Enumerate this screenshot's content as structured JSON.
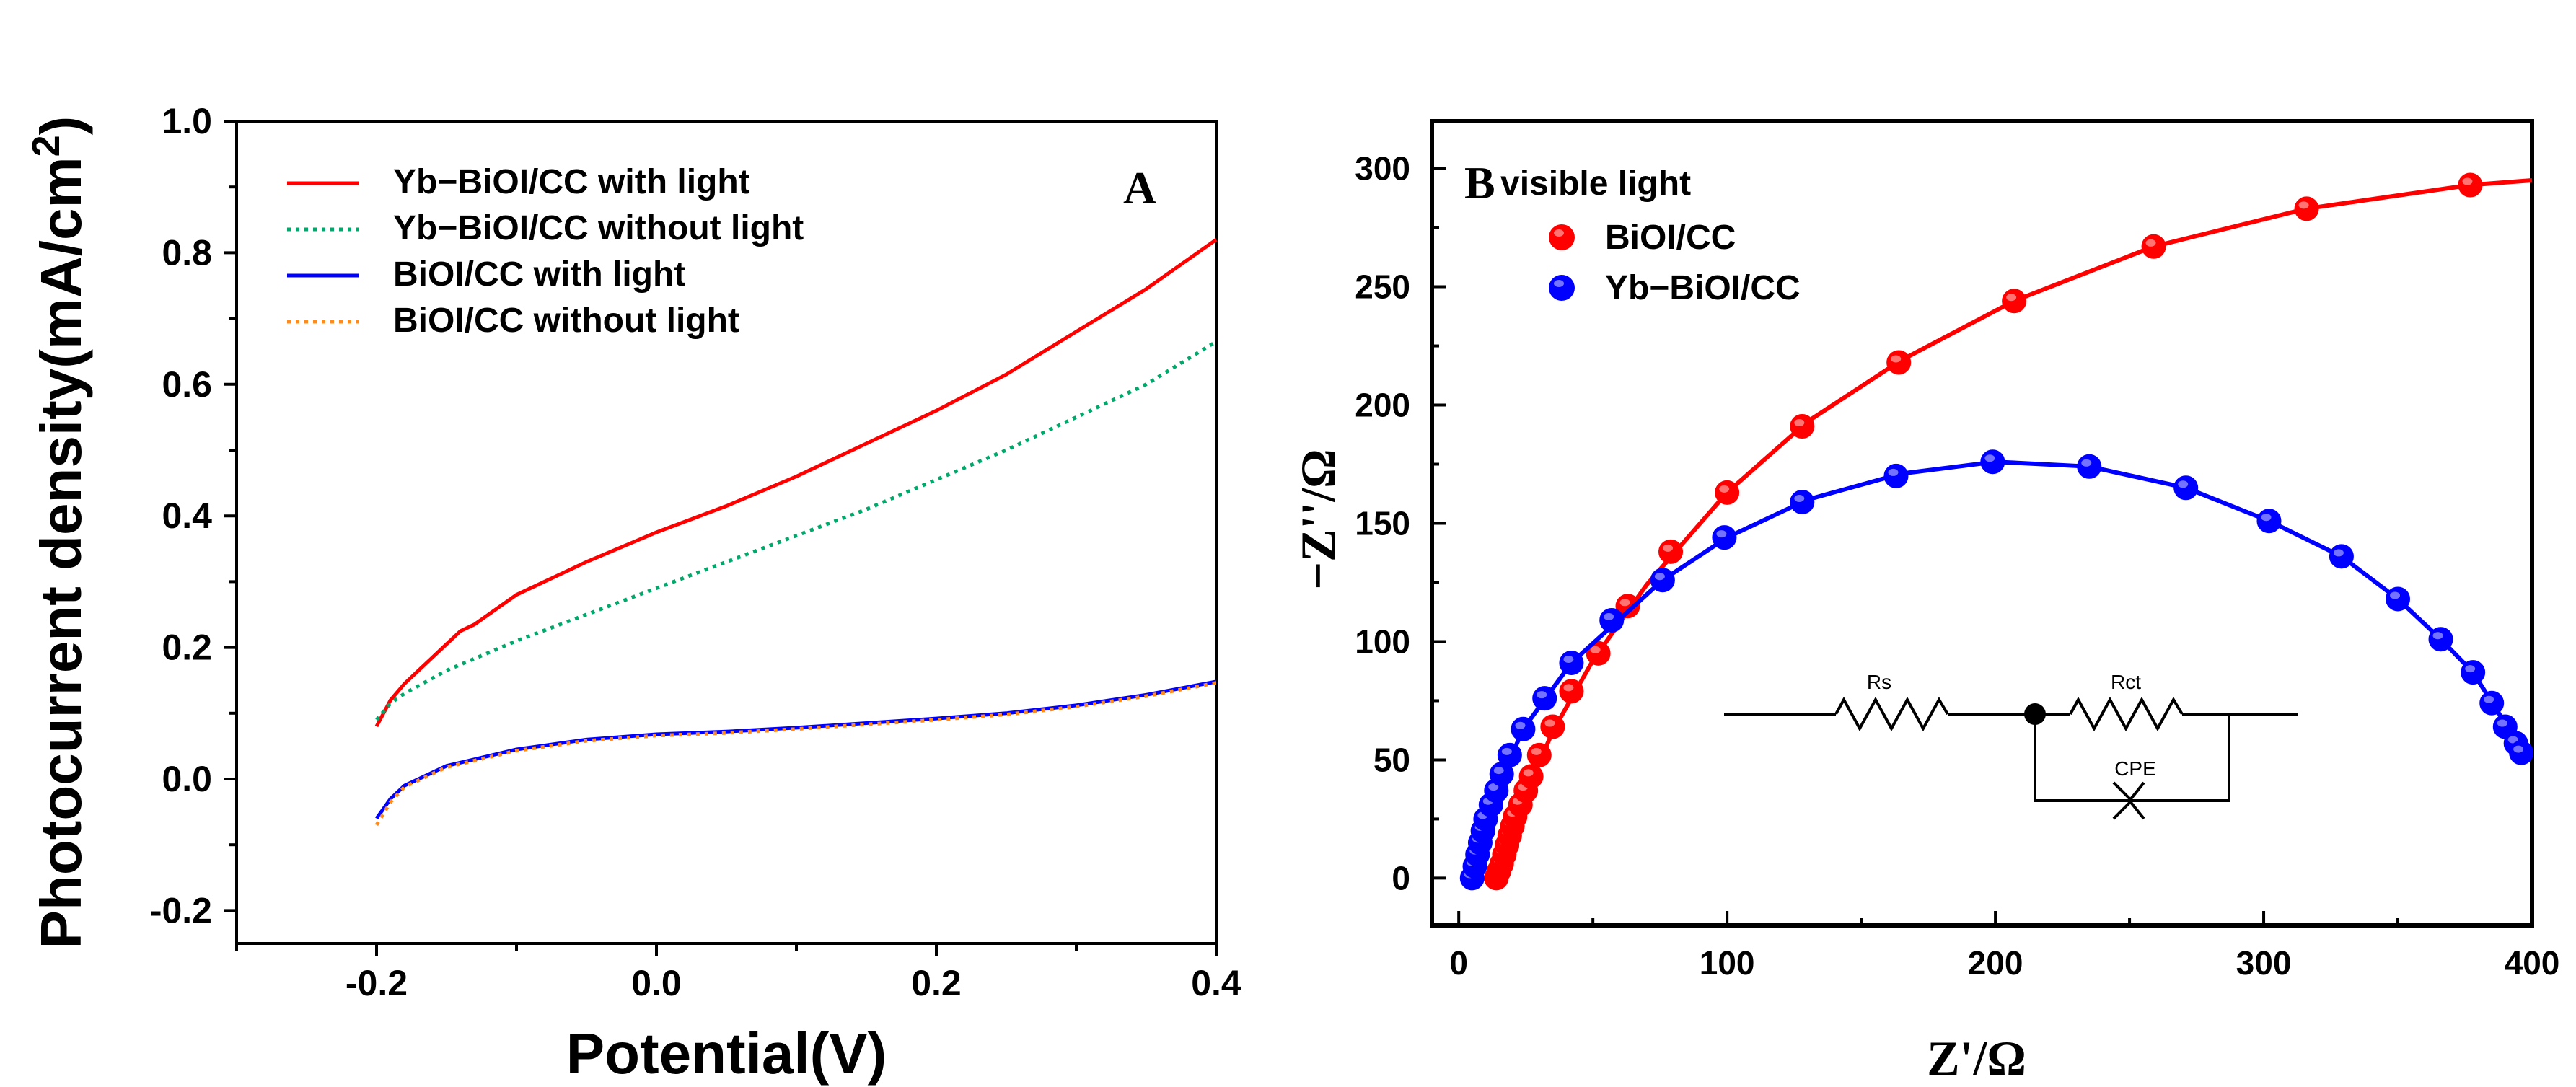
{
  "chart_data": [
    {
      "panel": "A",
      "type": "line",
      "title": "",
      "xlabel": "Potential(V)",
      "ylabel": "Photocurrent density(mA/cm²)",
      "ylabel_main": "Photocurrent density(mA/cm",
      "ylabel_sup": "2",
      "ylabel_end": ")",
      "xlim": [
        -0.3,
        0.4
      ],
      "ylim": [
        -0.25,
        1.0
      ],
      "xticks": [
        -0.2,
        0.0,
        0.2,
        0.4
      ],
      "xtick_labels": [
        "-0.2",
        "0.0",
        "0.2",
        "0.4"
      ],
      "yticks": [
        -0.2,
        0.0,
        0.2,
        0.4,
        0.6,
        0.8,
        1.0
      ],
      "ytick_labels": [
        "-0.2",
        "0.0",
        "0.2",
        "0.4",
        "0.6",
        "0.8",
        "1.0"
      ],
      "legend_position": "top-left",
      "series": [
        {
          "name": "Yb−BiOI/CC with light",
          "color": "#ff0000",
          "dash": "solid",
          "x": [
            -0.2,
            -0.19,
            -0.18,
            -0.17,
            -0.16,
            -0.15,
            -0.14,
            -0.13,
            -0.1,
            -0.05,
            0.0,
            0.05,
            0.1,
            0.15,
            0.2,
            0.25,
            0.3,
            0.35,
            0.4
          ],
          "y": [
            0.08,
            0.12,
            0.145,
            0.165,
            0.185,
            0.205,
            0.225,
            0.235,
            0.28,
            0.33,
            0.375,
            0.415,
            0.46,
            0.51,
            0.56,
            0.615,
            0.68,
            0.745,
            0.82
          ]
        },
        {
          "name": "Yb−BiOI/CC without light",
          "color": "#00a86b",
          "dash": "dotted",
          "x": [
            -0.2,
            -0.19,
            -0.18,
            -0.15,
            -0.1,
            -0.05,
            0.0,
            0.05,
            0.1,
            0.15,
            0.2,
            0.25,
            0.3,
            0.35,
            0.4
          ],
          "y": [
            0.09,
            0.115,
            0.13,
            0.165,
            0.21,
            0.25,
            0.29,
            0.33,
            0.37,
            0.41,
            0.455,
            0.5,
            0.55,
            0.6,
            0.665
          ]
        },
        {
          "name": "BiOI/CC with light",
          "color": "#0000ff",
          "dash": "solid",
          "x": [
            -0.2,
            -0.19,
            -0.18,
            -0.15,
            -0.1,
            -0.05,
            0.0,
            0.05,
            0.1,
            0.15,
            0.2,
            0.25,
            0.3,
            0.35,
            0.4
          ],
          "y": [
            -0.06,
            -0.03,
            -0.01,
            0.02,
            0.045,
            0.06,
            0.068,
            0.072,
            0.078,
            0.085,
            0.092,
            0.1,
            0.112,
            0.128,
            0.148
          ]
        },
        {
          "name": "BiOI/CC without light",
          "color": "#ff8c1a",
          "dash": "dotted",
          "x": [
            -0.2,
            -0.19,
            -0.18,
            -0.15,
            -0.1,
            -0.05,
            0.0,
            0.05,
            0.1,
            0.15,
            0.2,
            0.25,
            0.3,
            0.35,
            0.4
          ],
          "y": [
            -0.07,
            -0.035,
            -0.012,
            0.018,
            0.043,
            0.058,
            0.066,
            0.07,
            0.076,
            0.083,
            0.09,
            0.098,
            0.11,
            0.126,
            0.146
          ]
        }
      ]
    },
    {
      "panel": "B",
      "panel_subtitle": "visible light",
      "type": "scatter",
      "title": "",
      "xlabel": "Z'/Ω",
      "ylabel": "−Z''/Ω",
      "xlim": [
        -10,
        400
      ],
      "ylim": [
        -20,
        320
      ],
      "xticks": [
        0,
        100,
        200,
        300,
        400
      ],
      "xtick_labels": [
        "0",
        "100",
        "200",
        "300",
        "400"
      ],
      "yticks": [
        0,
        50,
        100,
        150,
        200,
        250,
        300
      ],
      "ytick_labels": [
        "0",
        "50",
        "100",
        "150",
        "200",
        "250",
        "300"
      ],
      "legend_position": "top-left",
      "series": [
        {
          "name": "BiOI/CC",
          "color": "#ff0000",
          "points": [
            [
              14,
              0
            ],
            [
              15,
              3
            ],
            [
              16,
              6
            ],
            [
              17,
              10
            ],
            [
              18,
              14
            ],
            [
              19,
              18
            ],
            [
              20,
              22
            ],
            [
              21,
              26
            ],
            [
              23,
              31
            ],
            [
              25,
              37
            ],
            [
              27,
              43
            ],
            [
              30,
              52
            ],
            [
              35,
              64
            ],
            [
              42,
              79
            ],
            [
              52,
              95
            ],
            [
              63,
              115
            ],
            [
              79,
              138
            ],
            [
              100,
              163
            ],
            [
              128,
              191
            ],
            [
              164,
              218
            ],
            [
              207,
              244
            ],
            [
              259,
              267
            ],
            [
              316,
              283
            ],
            [
              377,
              293
            ]
          ],
          "fit": [
            [
              12,
              -2
            ],
            [
              16,
              6
            ],
            [
              20,
              20
            ],
            [
              26,
              38
            ],
            [
              35,
              62
            ],
            [
              50,
              92
            ],
            [
              70,
              124
            ],
            [
              100,
              163
            ],
            [
              130,
              193
            ],
            [
              165,
              219
            ],
            [
              207,
              244
            ],
            [
              259,
              267
            ],
            [
              316,
              283
            ],
            [
              377,
              293
            ],
            [
              400,
              295
            ]
          ]
        },
        {
          "name": "Yb−BiOI/CC",
          "color": "#0000ff",
          "points": [
            [
              5,
              0
            ],
            [
              6,
              5
            ],
            [
              7,
              10
            ],
            [
              8,
              15
            ],
            [
              9,
              20
            ],
            [
              10,
              25
            ],
            [
              12,
              31
            ],
            [
              14,
              37
            ],
            [
              16,
              44
            ],
            [
              19,
              52
            ],
            [
              24,
              63
            ],
            [
              32,
              76
            ],
            [
              42,
              91
            ],
            [
              57,
              109
            ],
            [
              76,
              126
            ],
            [
              99,
              144
            ],
            [
              128,
              159
            ],
            [
              163,
              170
            ],
            [
              199,
              176
            ],
            [
              235,
              174
            ],
            [
              271,
              165
            ],
            [
              302,
              151
            ],
            [
              329,
              136
            ],
            [
              350,
              118
            ],
            [
              366,
              101
            ],
            [
              378,
              87
            ],
            [
              385,
              74
            ],
            [
              390,
              64
            ],
            [
              394,
              57
            ],
            [
              396,
              53
            ]
          ],
          "fit": [
            [
              4,
              -2
            ],
            [
              8,
              15
            ],
            [
              14,
              37
            ],
            [
              24,
              63
            ],
            [
              42,
              91
            ],
            [
              76,
              126
            ],
            [
              100,
              144
            ],
            [
              130,
              160
            ],
            [
              165,
              171
            ],
            [
              200,
              176
            ],
            [
              235,
              174
            ],
            [
              271,
              165
            ],
            [
              302,
              151
            ],
            [
              329,
              136
            ],
            [
              350,
              118
            ],
            [
              366,
              101
            ],
            [
              378,
              87
            ],
            [
              388,
              69
            ],
            [
              396,
              53
            ]
          ]
        }
      ],
      "circuit": {
        "labels": [
          "Rs",
          "Rct",
          "CPE"
        ]
      }
    }
  ]
}
